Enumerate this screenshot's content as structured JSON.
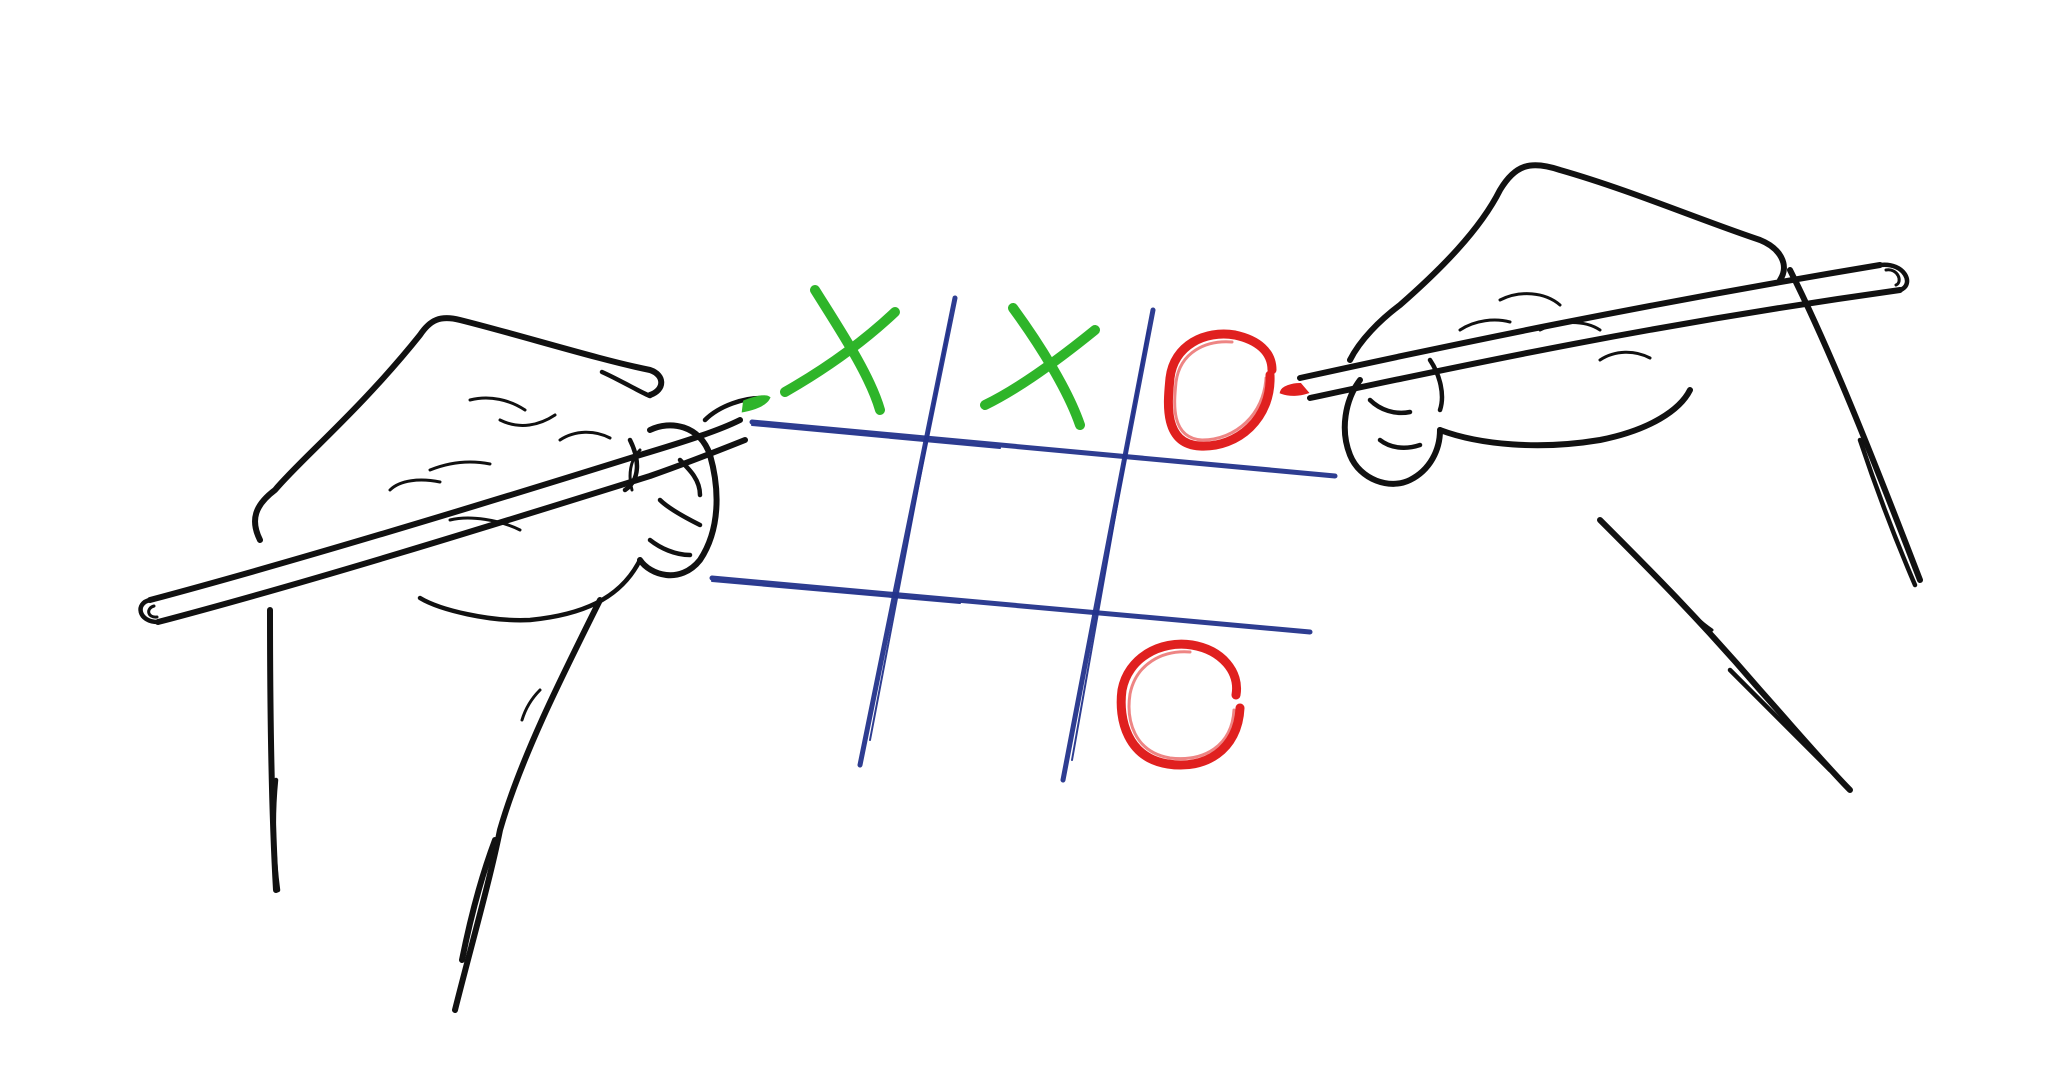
{
  "scene": {
    "subject": "tic-tac-toe",
    "colors": {
      "background": "#ffffff",
      "outline": "#111111",
      "grid": "#23338c",
      "x_mark": "#2fb52a",
      "o_mark": "#e0201f"
    },
    "board": [
      [
        "X",
        "X",
        "O"
      ],
      [
        "",
        "",
        ""
      ],
      [
        "",
        "",
        "O"
      ]
    ],
    "players": [
      {
        "side": "left",
        "mark": "X",
        "pen_color": "#2fb52a"
      },
      {
        "side": "right",
        "mark": "O",
        "pen_color": "#e0201f"
      }
    ]
  }
}
